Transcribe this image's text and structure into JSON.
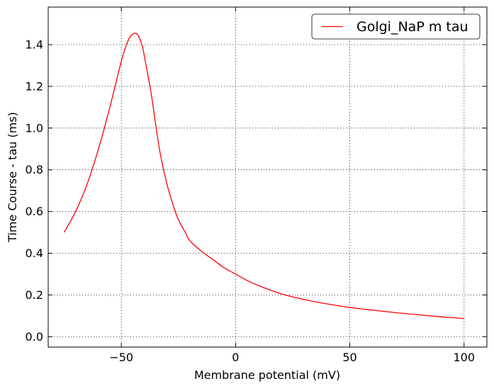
{
  "chart_data": {
    "type": "line",
    "xlabel": "Membrane potential (mV)",
    "ylabel": "Time Course - tau (ms)",
    "xlim": [
      -82,
      110
    ],
    "ylim": [
      -0.05,
      1.58
    ],
    "xticks": [
      -50,
      0,
      50,
      100
    ],
    "xtick_labels": [
      "−50",
      "0",
      "50",
      "100"
    ],
    "yticks": [
      0.0,
      0.2,
      0.4,
      0.6,
      0.8,
      1.0,
      1.2,
      1.4
    ],
    "ytick_labels": [
      "0.0",
      "0.2",
      "0.4",
      "0.6",
      "0.8",
      "1.0",
      "1.2",
      "1.4"
    ],
    "grid": true,
    "legend": {
      "position": "top-right",
      "entries": [
        "Golgi_NaP m tau"
      ]
    },
    "series": [
      {
        "name": "Golgi_NaP m tau",
        "color": "#ff0000",
        "x": [
          -75,
          -70,
          -65,
          -60,
          -55,
          -50,
          -47,
          -45,
          -43,
          -41,
          -40,
          -37,
          -35,
          -33,
          -30,
          -27,
          -25,
          -22,
          -20,
          -15,
          -10,
          -5,
          0,
          5,
          10,
          20,
          30,
          40,
          50,
          60,
          70,
          80,
          90,
          100
        ],
        "y": [
          0.5,
          0.6,
          0.73,
          0.9,
          1.1,
          1.32,
          1.42,
          1.45,
          1.45,
          1.4,
          1.35,
          1.17,
          1.02,
          0.88,
          0.73,
          0.62,
          0.56,
          0.5,
          0.46,
          0.41,
          0.37,
          0.33,
          0.3,
          0.27,
          0.245,
          0.205,
          0.178,
          0.157,
          0.14,
          0.127,
          0.115,
          0.105,
          0.095,
          0.087
        ]
      }
    ]
  }
}
